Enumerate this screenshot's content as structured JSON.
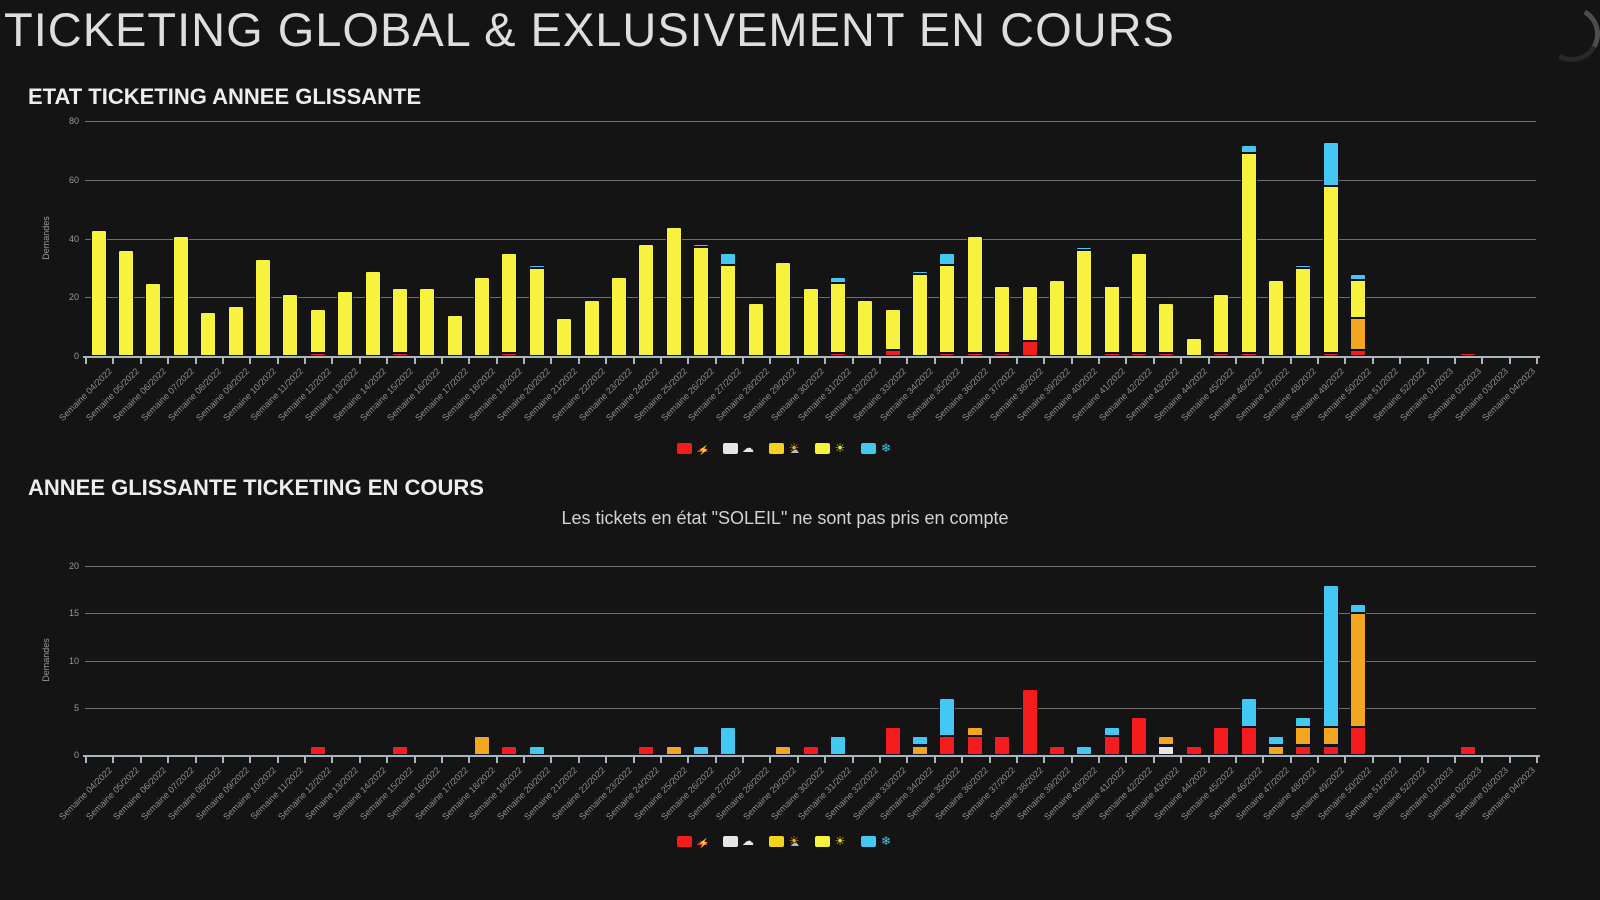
{
  "page": {
    "title": "TICKETING GLOBAL & EXLUSIVEMENT EN COURS",
    "background": "#141414"
  },
  "header": {
    "spinner_icon": "loading-arc-icon"
  },
  "colors": {
    "title_text": "#dedede",
    "heading_text": "#ededed",
    "subtitle_text": "#d2d2d2",
    "gridline": "#6e6e6e",
    "axis_line": "#a8b6c0",
    "tick_label": "#8f8f8f",
    "series": {
      "orage": "#f41c1c",
      "nuage": "#e6e6e6",
      "eclaircie": "#f2a71e",
      "soleil": "#f6f23e",
      "neige": "#43c8f2"
    }
  },
  "legend": {
    "items": [
      {
        "icon": "storm-icon",
        "swatch": "#f41c1c",
        "glyph_color": "#e03030"
      },
      {
        "icon": "cloud-icon",
        "swatch": "#e6e6e6",
        "glyph_color": "#e6e6e6"
      },
      {
        "icon": "sun-cloud-icon",
        "swatch": "#f5d31c",
        "glyph_color": "#f2a71e"
      },
      {
        "icon": "sun-icon",
        "swatch": "#f6f23e",
        "glyph_color": "#f5e52a"
      },
      {
        "icon": "snowflake-icon",
        "swatch": "#43c8f2",
        "glyph_color": "#43c8f2"
      }
    ]
  },
  "chart_data": [
    {
      "type": "bar",
      "stacked": true,
      "title": "ETAT TICKETING ANNEE GLISSANTE",
      "subtitle": "",
      "xlabel": "",
      "ylabel": "Demandes",
      "ylim": [
        0,
        80
      ],
      "yticks": [
        0,
        20,
        40,
        60,
        80
      ],
      "grid": true,
      "legend_position": "bottom",
      "categories": [
        "Semaine 04/2022",
        "Semaine 05/2022",
        "Semaine 06/2022",
        "Semaine 07/2022",
        "Semaine 08/2022",
        "Semaine 09/2022",
        "Semaine 10/2022",
        "Semaine 11/2022",
        "Semaine 12/2022",
        "Semaine 13/2022",
        "Semaine 14/2022",
        "Semaine 15/2022",
        "Semaine 16/2022",
        "Semaine 17/2022",
        "Semaine 18/2022",
        "Semaine 19/2022",
        "Semaine 20/2022",
        "Semaine 21/2022",
        "Semaine 22/2022",
        "Semaine 23/2022",
        "Semaine 24/2022",
        "Semaine 25/2022",
        "Semaine 26/2022",
        "Semaine 27/2022",
        "Semaine 28/2022",
        "Semaine 29/2022",
        "Semaine 30/2022",
        "Semaine 31/2022",
        "Semaine 32/2022",
        "Semaine 33/2022",
        "Semaine 34/2022",
        "Semaine 35/2022",
        "Semaine 36/2022",
        "Semaine 37/2022",
        "Semaine 38/2022",
        "Semaine 39/2022",
        "Semaine 40/2022",
        "Semaine 41/2022",
        "Semaine 42/2022",
        "Semaine 43/2022",
        "Semaine 44/2022",
        "Semaine 45/2022",
        "Semaine 46/2022",
        "Semaine 47/2022",
        "Semaine 48/2022",
        "Semaine 49/2022",
        "Semaine 50/2022",
        "Semaine 51/2022",
        "Semaine 52/2022",
        "Semaine 01/2023",
        "Semaine 02/2023",
        "Semaine 03/2023",
        "Semaine 04/2023"
      ],
      "series": [
        {
          "name": "orage",
          "color": "#f41c1c",
          "values": [
            0,
            0,
            0,
            0,
            0,
            0,
            0,
            0,
            1,
            0,
            0,
            1,
            0,
            0,
            0,
            1,
            0,
            0,
            0,
            0,
            0,
            0,
            0,
            0,
            0,
            0,
            0,
            1,
            0,
            2,
            0,
            1,
            1,
            1,
            5,
            0,
            0,
            1,
            1,
            1,
            0,
            1,
            1,
            0,
            0,
            1,
            2,
            0,
            0,
            0,
            1,
            0,
            0
          ]
        },
        {
          "name": "nuage",
          "color": "#e6e6e6",
          "values": [
            0,
            0,
            0,
            0,
            0,
            0,
            0,
            0,
            0,
            0,
            0,
            0,
            0,
            0,
            0,
            0,
            0,
            0,
            0,
            0,
            0,
            0,
            0,
            0,
            0,
            0,
            0,
            0,
            0,
            0,
            0,
            0,
            0,
            0,
            0,
            0,
            0,
            0,
            0,
            0,
            0,
            0,
            0,
            0,
            0,
            0,
            0,
            0,
            0,
            0,
            0,
            0,
            0
          ]
        },
        {
          "name": "eclaircie",
          "color": "#f2a71e",
          "values": [
            0,
            0,
            0,
            0,
            0,
            0,
            0,
            0,
            0,
            0,
            0,
            0,
            0,
            0,
            0,
            0,
            0,
            0,
            0,
            0,
            0,
            0,
            0,
            0,
            0,
            0,
            0,
            0,
            0,
            0,
            0,
            0,
            0,
            0,
            0,
            0,
            0,
            0,
            0,
            0,
            0,
            0,
            0,
            0,
            0,
            0,
            11,
            0,
            0,
            0,
            0,
            0,
            0
          ]
        },
        {
          "name": "soleil",
          "color": "#f6f23e",
          "values": [
            43,
            36,
            25,
            41,
            15,
            17,
            33,
            21,
            15,
            22,
            29,
            22,
            23,
            14,
            27,
            34,
            30,
            13,
            19,
            27,
            38,
            44,
            37,
            31,
            18,
            32,
            23,
            24,
            19,
            14,
            28,
            30,
            40,
            23,
            19,
            26,
            36,
            23,
            34,
            17,
            6,
            20,
            68,
            26,
            30,
            57,
            13,
            0,
            0,
            0,
            0,
            0,
            0
          ]
        },
        {
          "name": "neige",
          "color": "#43c8f2",
          "values": [
            0,
            0,
            0,
            0,
            0,
            0,
            0,
            0,
            0,
            0,
            0,
            0,
            0,
            0,
            0,
            0,
            1,
            0,
            0,
            0,
            0,
            0,
            1,
            4,
            0,
            0,
            0,
            2,
            0,
            0,
            1,
            4,
            0,
            0,
            0,
            0,
            1,
            1,
            0,
            0,
            0,
            0,
            3,
            0,
            1,
            15,
            2,
            0,
            0,
            0,
            0,
            0,
            0
          ]
        }
      ]
    },
    {
      "type": "bar",
      "stacked": true,
      "title": "ANNEE GLISSANTE TICKETING EN COURS",
      "subtitle": "Les tickets en état \"SOLEIL\" ne sont pas pris en compte",
      "xlabel": "",
      "ylabel": "Demandes",
      "ylim": [
        0,
        20
      ],
      "yticks": [
        0,
        5,
        10,
        15,
        20
      ],
      "grid": true,
      "legend_position": "bottom",
      "categories": [
        "Semaine 04/2022",
        "Semaine 05/2022",
        "Semaine 06/2022",
        "Semaine 07/2022",
        "Semaine 08/2022",
        "Semaine 09/2022",
        "Semaine 10/2022",
        "Semaine 11/2022",
        "Semaine 12/2022",
        "Semaine 13/2022",
        "Semaine 14/2022",
        "Semaine 15/2022",
        "Semaine 16/2022",
        "Semaine 17/2022",
        "Semaine 18/2022",
        "Semaine 19/2022",
        "Semaine 20/2022",
        "Semaine 21/2022",
        "Semaine 22/2022",
        "Semaine 23/2022",
        "Semaine 24/2022",
        "Semaine 25/2022",
        "Semaine 26/2022",
        "Semaine 27/2022",
        "Semaine 28/2022",
        "Semaine 29/2022",
        "Semaine 30/2022",
        "Semaine 31/2022",
        "Semaine 32/2022",
        "Semaine 33/2022",
        "Semaine 34/2022",
        "Semaine 35/2022",
        "Semaine 36/2022",
        "Semaine 37/2022",
        "Semaine 38/2022",
        "Semaine 39/2022",
        "Semaine 40/2022",
        "Semaine 41/2022",
        "Semaine 42/2022",
        "Semaine 43/2022",
        "Semaine 44/2022",
        "Semaine 45/2022",
        "Semaine 46/2022",
        "Semaine 47/2022",
        "Semaine 48/2022",
        "Semaine 49/2022",
        "Semaine 50/2022",
        "Semaine 51/2022",
        "Semaine 52/2022",
        "Semaine 01/2023",
        "Semaine 02/2023",
        "Semaine 03/2023",
        "Semaine 04/2023"
      ],
      "series": [
        {
          "name": "orage",
          "color": "#f41c1c",
          "values": [
            0,
            0,
            0,
            0,
            0,
            0,
            0,
            0,
            1,
            0,
            0,
            1,
            0,
            0,
            0,
            1,
            0,
            0,
            0,
            0,
            1,
            0,
            0,
            0,
            0,
            0,
            1,
            0,
            0,
            3,
            0,
            2,
            2,
            2,
            7,
            1,
            0,
            2,
            4,
            0,
            1,
            3,
            3,
            0,
            1,
            1,
            3,
            0,
            0,
            0,
            1,
            0,
            0
          ]
        },
        {
          "name": "nuage",
          "color": "#e6e6e6",
          "values": [
            0,
            0,
            0,
            0,
            0,
            0,
            0,
            0,
            0,
            0,
            0,
            0,
            0,
            0,
            0,
            0,
            0,
            0,
            0,
            0,
            0,
            0,
            0,
            0,
            0,
            0,
            0,
            0,
            0,
            0,
            0,
            0,
            0,
            0,
            0,
            0,
            0,
            0,
            0,
            1,
            0,
            0,
            0,
            0,
            0,
            0,
            0,
            0,
            0,
            0,
            0,
            0,
            0
          ]
        },
        {
          "name": "eclaircie",
          "color": "#f2a71e",
          "values": [
            0,
            0,
            0,
            0,
            0,
            0,
            0,
            0,
            0,
            0,
            0,
            0,
            0,
            0,
            2,
            0,
            0,
            0,
            0,
            0,
            0,
            1,
            0,
            0,
            0,
            1,
            0,
            0,
            0,
            0,
            1,
            0,
            1,
            0,
            0,
            0,
            0,
            0,
            0,
            1,
            0,
            0,
            0,
            1,
            2,
            2,
            12,
            0,
            0,
            0,
            0,
            0,
            0
          ]
        },
        {
          "name": "soleil",
          "color": "#f6f23e",
          "values": [
            0,
            0,
            0,
            0,
            0,
            0,
            0,
            0,
            0,
            0,
            0,
            0,
            0,
            0,
            0,
            0,
            0,
            0,
            0,
            0,
            0,
            0,
            0,
            0,
            0,
            0,
            0,
            0,
            0,
            0,
            0,
            0,
            0,
            0,
            0,
            0,
            0,
            0,
            0,
            0,
            0,
            0,
            0,
            0,
            0,
            0,
            0,
            0,
            0,
            0,
            0,
            0,
            0
          ]
        },
        {
          "name": "neige",
          "color": "#43c8f2",
          "values": [
            0,
            0,
            0,
            0,
            0,
            0,
            0,
            0,
            0,
            0,
            0,
            0,
            0,
            0,
            0,
            0,
            1,
            0,
            0,
            0,
            0,
            0,
            1,
            3,
            0,
            0,
            0,
            2,
            0,
            0,
            1,
            4,
            0,
            0,
            0,
            0,
            1,
            1,
            0,
            0,
            0,
            0,
            3,
            1,
            1,
            15,
            1,
            0,
            0,
            0,
            0,
            0,
            0
          ]
        }
      ]
    }
  ]
}
